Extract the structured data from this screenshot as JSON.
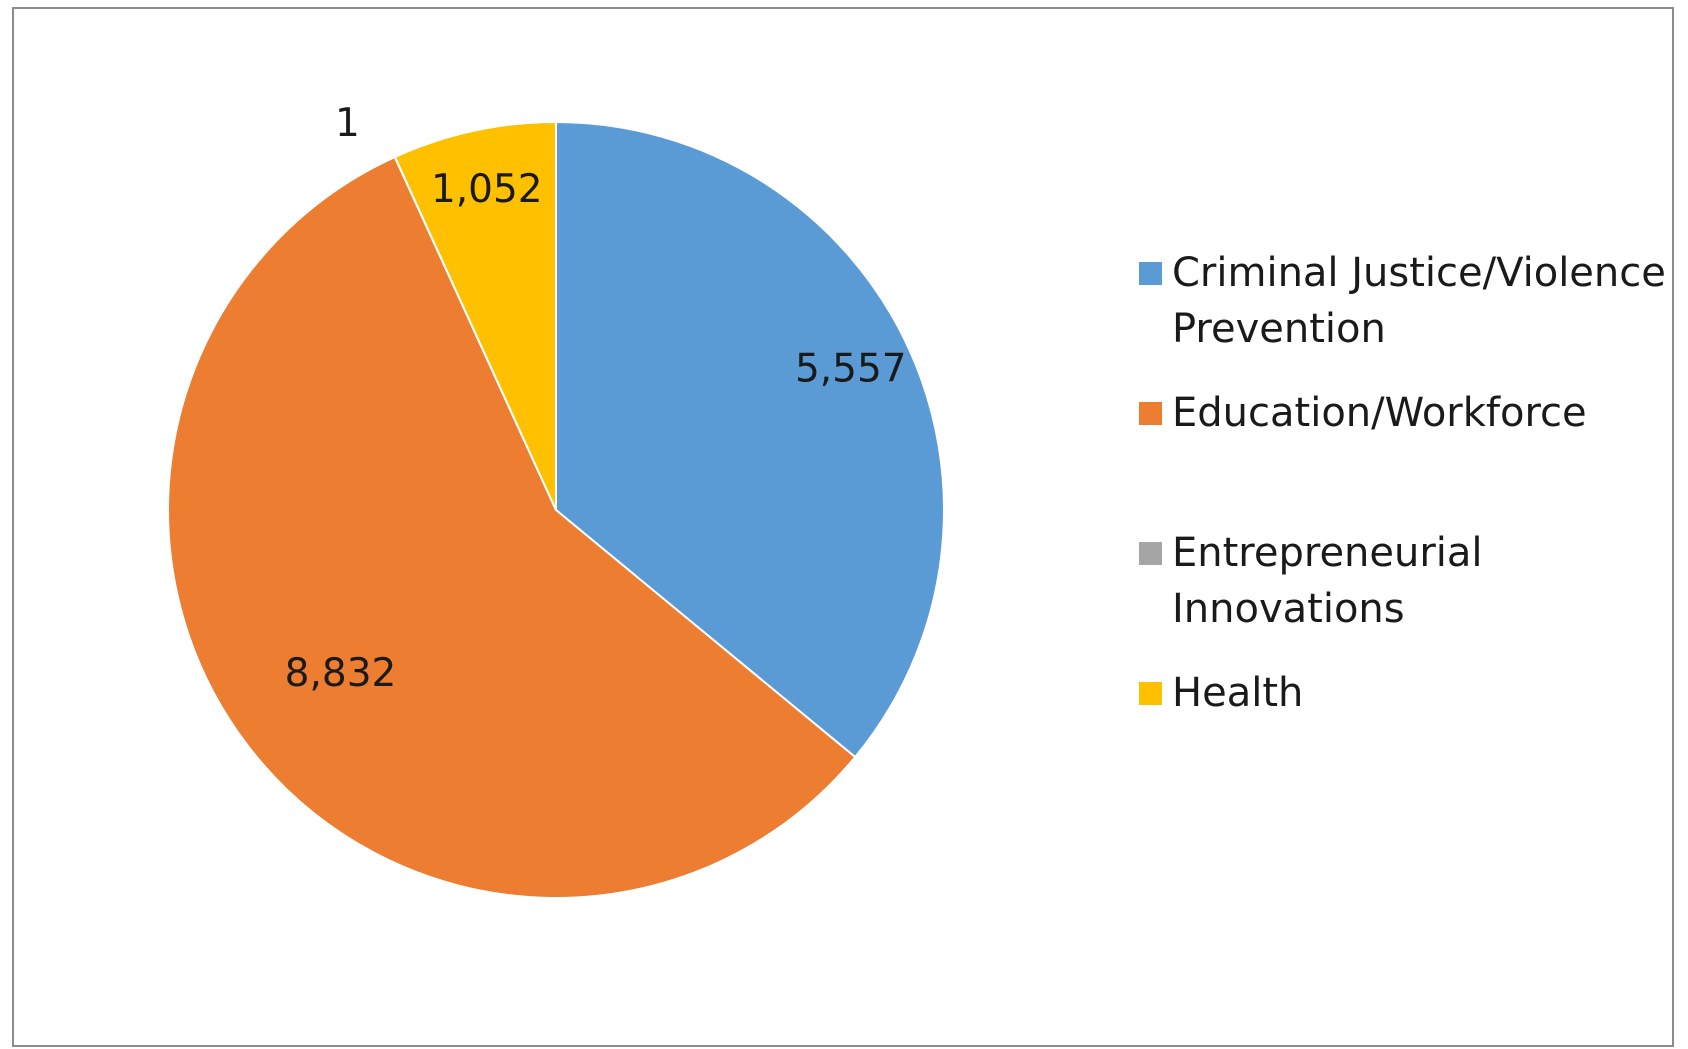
{
  "chart_data": {
    "type": "pie",
    "title": "",
    "slices": [
      {
        "label": "Criminal Justice/Violence Prevention",
        "value": 5557,
        "display": "5,557",
        "color": "#5B9BD5"
      },
      {
        "label": "Education/Workforce",
        "value": 8832,
        "display": "8,832",
        "color": "#ED7D31"
      },
      {
        "label": "Entrepreneurial Innovations",
        "value": 1,
        "display": "1",
        "color": "#A5A5A5"
      },
      {
        "label": "Health",
        "value": 1052,
        "display": "1,052",
        "color": "#FFC000"
      }
    ],
    "start_angle": "12 o'clock",
    "direction": "clockwise",
    "legend_position": "right",
    "data_labels": true
  }
}
